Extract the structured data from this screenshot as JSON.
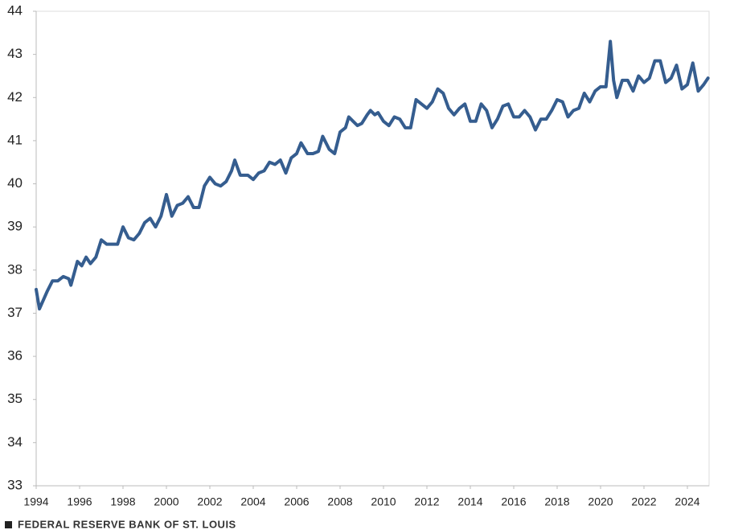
{
  "chart_data": {
    "type": "line",
    "x": [
      1994.0,
      1994.15,
      1994.5,
      1994.75,
      1995.0,
      1995.25,
      1995.5,
      1995.6,
      1995.9,
      1996.1,
      1996.3,
      1996.5,
      1996.75,
      1997.0,
      1997.25,
      1997.5,
      1997.75,
      1998.0,
      1998.25,
      1998.5,
      1998.75,
      1999.0,
      1999.25,
      1999.5,
      1999.75,
      2000.0,
      2000.25,
      2000.5,
      2000.75,
      2001.0,
      2001.25,
      2001.5,
      2001.75,
      2002.0,
      2002.25,
      2002.5,
      2002.75,
      2003.0,
      2003.15,
      2003.4,
      2003.75,
      2004.0,
      2004.25,
      2004.5,
      2004.75,
      2005.0,
      2005.25,
      2005.5,
      2005.75,
      2006.0,
      2006.2,
      2006.5,
      2006.75,
      2007.0,
      2007.2,
      2007.5,
      2007.75,
      2008.0,
      2008.25,
      2008.4,
      2008.6,
      2008.8,
      2009.0,
      2009.25,
      2009.4,
      2009.6,
      2009.75,
      2010.0,
      2010.25,
      2010.5,
      2010.75,
      2011.0,
      2011.25,
      2011.5,
      2011.75,
      2012.0,
      2012.25,
      2012.5,
      2012.75,
      2013.0,
      2013.25,
      2013.5,
      2013.75,
      2014.0,
      2014.25,
      2014.5,
      2014.75,
      2015.0,
      2015.25,
      2015.5,
      2015.75,
      2016.0,
      2016.25,
      2016.5,
      2016.75,
      2017.0,
      2017.25,
      2017.5,
      2017.75,
      2018.0,
      2018.25,
      2018.5,
      2018.75,
      2019.0,
      2019.25,
      2019.5,
      2019.75,
      2020.0,
      2020.25,
      2020.45,
      2020.6,
      2020.75,
      2021.0,
      2021.25,
      2021.5,
      2021.75,
      2022.0,
      2022.25,
      2022.5,
      2022.75,
      2023.0,
      2023.25,
      2023.5,
      2023.75,
      2024.0,
      2024.25,
      2024.5,
      2024.75,
      2024.95
    ],
    "values": [
      37.55,
      37.1,
      37.5,
      37.75,
      37.75,
      37.85,
      37.8,
      37.65,
      38.2,
      38.1,
      38.3,
      38.15,
      38.3,
      38.7,
      38.6,
      38.6,
      38.6,
      39.0,
      38.75,
      38.7,
      38.85,
      39.1,
      39.2,
      39.0,
      39.25,
      39.75,
      39.25,
      39.5,
      39.55,
      39.7,
      39.45,
      39.45,
      39.95,
      40.15,
      40.0,
      39.95,
      40.05,
      40.3,
      40.55,
      40.2,
      40.2,
      40.1,
      40.25,
      40.3,
      40.5,
      40.45,
      40.55,
      40.25,
      40.6,
      40.7,
      40.95,
      40.7,
      40.7,
      40.75,
      41.1,
      40.8,
      40.7,
      41.2,
      41.3,
      41.55,
      41.45,
      41.35,
      41.4,
      41.6,
      41.7,
      41.6,
      41.65,
      41.45,
      41.35,
      41.55,
      41.5,
      41.3,
      41.3,
      41.95,
      41.85,
      41.75,
      41.9,
      42.2,
      42.1,
      41.75,
      41.6,
      41.75,
      41.85,
      41.45,
      41.45,
      41.85,
      41.7,
      41.3,
      41.5,
      41.8,
      41.85,
      41.55,
      41.55,
      41.7,
      41.55,
      41.25,
      41.5,
      41.5,
      41.7,
      41.95,
      41.9,
      41.55,
      41.7,
      41.75,
      42.1,
      41.9,
      42.15,
      42.25,
      42.25,
      43.3,
      42.4,
      42.0,
      42.4,
      42.4,
      42.15,
      42.5,
      42.35,
      42.45,
      42.85,
      42.85,
      42.35,
      42.45,
      42.75,
      42.2,
      42.3,
      42.8,
      42.15,
      42.3,
      42.45
    ],
    "color": "#355d8f",
    "xlim": [
      1994,
      2025
    ],
    "xticks": [
      1994,
      1996,
      1998,
      2000,
      2002,
      2004,
      2006,
      2008,
      2010,
      2012,
      2014,
      2016,
      2018,
      2020,
      2022,
      2024
    ],
    "ylim": [
      33,
      44
    ],
    "yticks": [
      33,
      34,
      35,
      36,
      37,
      38,
      39,
      40,
      41,
      42,
      43,
      44
    ],
    "source": "FEDERAL RESERVE BANK OF ST. LOUIS"
  }
}
